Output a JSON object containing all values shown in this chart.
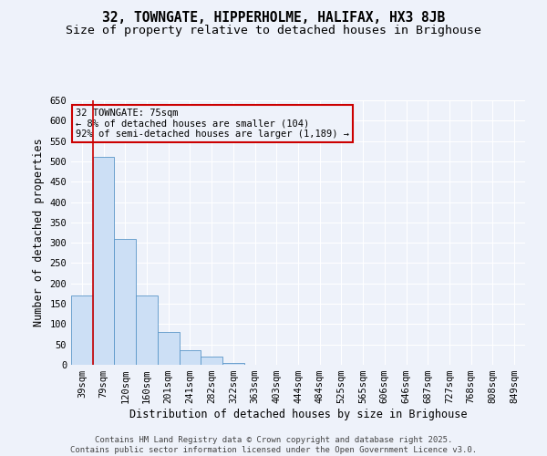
{
  "title": "32, TOWNGATE, HIPPERHOLME, HALIFAX, HX3 8JB",
  "subtitle": "Size of property relative to detached houses in Brighouse",
  "xlabel": "Distribution of detached houses by size in Brighouse",
  "ylabel": "Number of detached properties",
  "categories": [
    "39sqm",
    "79sqm",
    "120sqm",
    "160sqm",
    "201sqm",
    "241sqm",
    "282sqm",
    "322sqm",
    "363sqm",
    "403sqm",
    "444sqm",
    "484sqm",
    "525sqm",
    "565sqm",
    "606sqm",
    "646sqm",
    "687sqm",
    "727sqm",
    "768sqm",
    "808sqm",
    "849sqm"
  ],
  "values": [
    170,
    510,
    310,
    170,
    80,
    35,
    20,
    5,
    0,
    0,
    0,
    0,
    0,
    0,
    0,
    0,
    0,
    0,
    0,
    0,
    0
  ],
  "bar_color": "#ccdff5",
  "bar_edge_color": "#5a96c8",
  "annotation_line1": "32 TOWNGATE: 75sqm",
  "annotation_line2": "← 8% of detached houses are smaller (104)",
  "annotation_line3": "92% of semi-detached houses are larger (1,189) →",
  "annotation_box_color": "#cc0000",
  "vline_color": "#cc0000",
  "vline_pos": 0.5,
  "ylim": [
    0,
    650
  ],
  "yticks": [
    0,
    50,
    100,
    150,
    200,
    250,
    300,
    350,
    400,
    450,
    500,
    550,
    600,
    650
  ],
  "footer_line1": "Contains HM Land Registry data © Crown copyright and database right 2025.",
  "footer_line2": "Contains public sector information licensed under the Open Government Licence v3.0.",
  "bg_color": "#eef2fa",
  "grid_color": "#ffffff",
  "title_fontsize": 10.5,
  "subtitle_fontsize": 9.5,
  "axis_label_fontsize": 8.5,
  "tick_fontsize": 7.5,
  "annotation_fontsize": 7.5,
  "footer_fontsize": 6.5
}
